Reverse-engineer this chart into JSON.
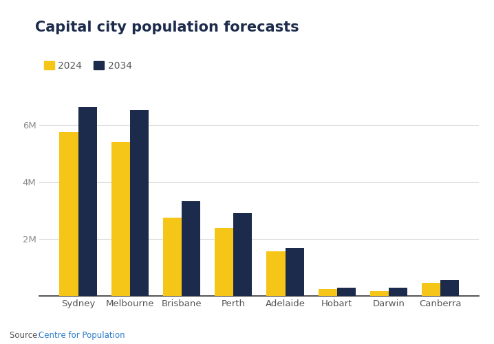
{
  "title": "Capital city population forecasts",
  "legend_labels": [
    "2024",
    "2034"
  ],
  "color_2024": "#F5C518",
  "color_2034": "#1C2B4B",
  "categories": [
    "Sydney",
    "Melbourne",
    "Brisbane",
    "Perth",
    "Adelaide",
    "Hobart",
    "Darwin",
    "Canberra"
  ],
  "values_2024": [
    5750000,
    5390000,
    2750000,
    2370000,
    1560000,
    248000,
    155000,
    462000
  ],
  "values_2034": [
    6610000,
    6520000,
    3310000,
    2920000,
    1685000,
    288000,
    278000,
    548000
  ],
  "ylim": [
    0,
    7000000
  ],
  "yticks": [
    0,
    2000000,
    4000000,
    6000000
  ],
  "ytick_labels": [
    "",
    "2M",
    "4M",
    "6M"
  ],
  "source_text": "Source: ",
  "source_link": "Centre for Population",
  "source_link_color": "#2E7DC9",
  "background_color": "#ffffff",
  "title_fontsize": 15,
  "title_color": "#1C2B4B",
  "legend_fontsize": 10,
  "tick_fontsize": 9.5,
  "source_fontsize": 8.5,
  "bar_width": 0.36,
  "grid_color": "#d8d8d8",
  "tick_label_color": "#8a8a8a",
  "xtick_label_color": "#555555",
  "spine_color": "#333333"
}
